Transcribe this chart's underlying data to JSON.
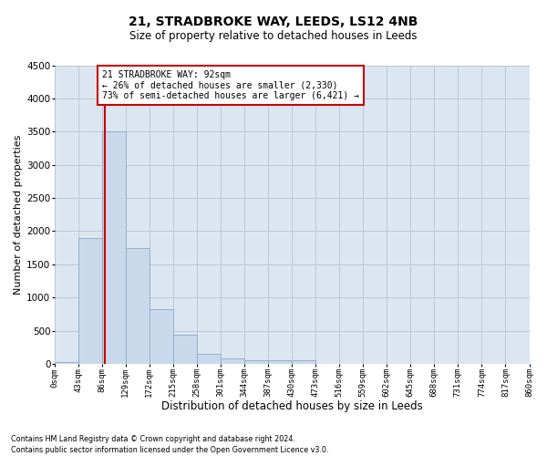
{
  "title_line1": "21, STRADBROKE WAY, LEEDS, LS12 4NB",
  "title_line2": "Size of property relative to detached houses in Leeds",
  "xlabel": "Distribution of detached houses by size in Leeds",
  "ylabel": "Number of detached properties",
  "footnote1": "Contains HM Land Registry data © Crown copyright and database right 2024.",
  "footnote2": "Contains public sector information licensed under the Open Government Licence v3.0.",
  "annotation_line1": "21 STRADBROKE WAY: 92sqm",
  "annotation_line2": "← 26% of detached houses are smaller (2,330)",
  "annotation_line3": "73% of semi-detached houses are larger (6,421) →",
  "bar_color": "#c9d9eb",
  "bar_edge_color": "#8aaac8",
  "property_line_color": "#cc0000",
  "property_value_sqm": 92,
  "ylim": [
    0,
    4500
  ],
  "yticks": [
    0,
    500,
    1000,
    1500,
    2000,
    2500,
    3000,
    3500,
    4000,
    4500
  ],
  "bin_edges": [
    0,
    43,
    86,
    129,
    172,
    215,
    258,
    301,
    344,
    387,
    430,
    473,
    516,
    559,
    602,
    645,
    688,
    731,
    774,
    817,
    860
  ],
  "bar_heights": [
    25,
    1900,
    3500,
    1750,
    820,
    440,
    155,
    88,
    60,
    53,
    50,
    0,
    0,
    0,
    0,
    0,
    0,
    0,
    0,
    0
  ],
  "tick_labels": [
    "0sqm",
    "43sqm",
    "86sqm",
    "129sqm",
    "172sqm",
    "215sqm",
    "258sqm",
    "301sqm",
    "344sqm",
    "387sqm",
    "430sqm",
    "473sqm",
    "516sqm",
    "559sqm",
    "602sqm",
    "645sqm",
    "688sqm",
    "731sqm",
    "774sqm",
    "817sqm",
    "860sqm"
  ],
  "annotation_bg": "#ffffff",
  "annotation_edge": "#cc0000",
  "ax_background": "#dce6f0",
  "fig_background": "#ffffff",
  "grid_color": "#b8c8da",
  "title1_fontsize": 10,
  "title2_fontsize": 8.5,
  "ylabel_fontsize": 8,
  "xlabel_fontsize": 8.5,
  "ytick_fontsize": 7.5,
  "xtick_fontsize": 6.5,
  "annot_fontsize": 7,
  "footnote_fontsize": 5.8
}
